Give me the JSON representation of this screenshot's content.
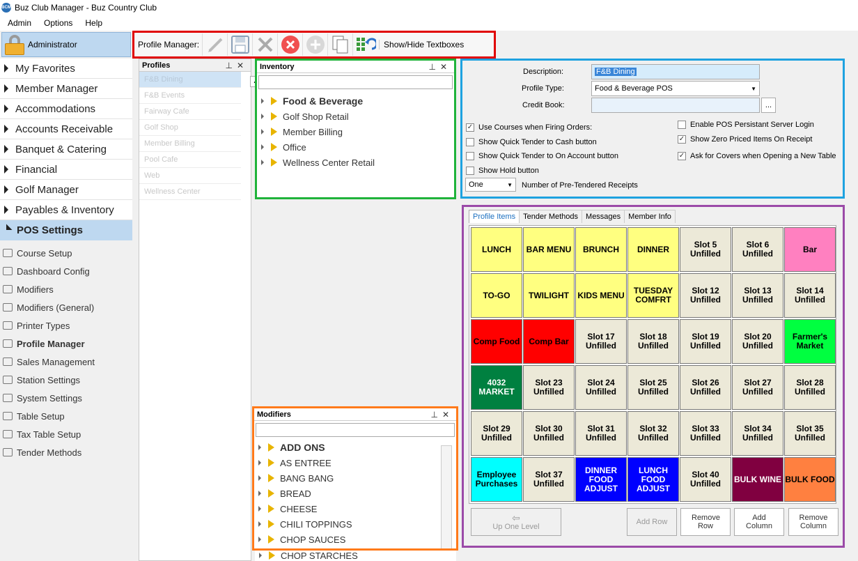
{
  "window": {
    "title": "Buz Club Manager - Buz Country Club",
    "app_badge": "BCM"
  },
  "menu": [
    "Admin",
    "Options",
    "Help"
  ],
  "user": {
    "name": "Administrator"
  },
  "nav": [
    {
      "label": "My Favorites"
    },
    {
      "label": "Member Manager"
    },
    {
      "label": "Accommodations"
    },
    {
      "label": "Accounts Receivable"
    },
    {
      "label": "Banquet & Catering"
    },
    {
      "label": "Financial"
    },
    {
      "label": "Golf Manager"
    },
    {
      "label": "Payables & Inventory"
    },
    {
      "label": "POS Settings"
    }
  ],
  "subnav": [
    {
      "label": "Course Setup",
      "icon": "course-icon"
    },
    {
      "label": "Dashboard Config",
      "icon": "dashboard-icon"
    },
    {
      "label": "Modifiers",
      "icon": "modifiers-icon"
    },
    {
      "label": "Modifiers (General)",
      "icon": "modifiers-general-icon"
    },
    {
      "label": "Printer Types",
      "icon": "printer-icon"
    },
    {
      "label": "Profile Manager",
      "icon": "grid-icon"
    },
    {
      "label": "Sales Management",
      "icon": "dollar-icon"
    },
    {
      "label": "Station Settings",
      "icon": "station-icon"
    },
    {
      "label": "System Settings",
      "icon": "gear-icon"
    },
    {
      "label": "Table Setup",
      "icon": "table-icon"
    },
    {
      "label": "Tax Table Setup",
      "icon": "percent-icon"
    },
    {
      "label": "Tender Methods",
      "icon": "tender-icon"
    }
  ],
  "toolbar": {
    "label": "Profile Manager:",
    "show_hide": "Show/Hide Textboxes"
  },
  "profiles": {
    "title": "Profiles",
    "items": [
      "F&B Dining",
      "F&B Events",
      "Fairway Cafe",
      "Golf Shop",
      "Member Billing",
      "Pool Cafe",
      "Web",
      "Wellness Center"
    ]
  },
  "inventory": {
    "title": "Inventory",
    "items": [
      "Food & Beverage",
      "Golf Shop Retail",
      "Member Billing",
      "Office",
      "Wellness Center Retail"
    ]
  },
  "modifiers": {
    "title": "Modifiers",
    "items": [
      "ADD ONS",
      "AS ENTREE",
      "BANG BANG",
      "BREAD",
      "CHEESE",
      "CHILI TOPPINGS",
      "CHOP SAUCES",
      "CHOP STARCHES"
    ]
  },
  "details": {
    "description_label": "Description:",
    "description_value": "F&B Dining",
    "profile_type_label": "Profile Type:",
    "profile_type_value": "Food & Beverage POS",
    "credit_book_label": "Credit Book:",
    "ellipsis": "...",
    "left_checks": [
      {
        "label": "Use Courses when Firing Orders:",
        "checked": true
      },
      {
        "label": "Show Quick Tender to Cash button",
        "checked": false
      },
      {
        "label": "Show Quick Tender to On Account button",
        "checked": false
      },
      {
        "label": "Show Hold button",
        "checked": false
      }
    ],
    "right_checks": [
      {
        "label": "Enable POS Persistant Server Login",
        "checked": false
      },
      {
        "label": "Show Zero Priced Items On Receipt",
        "checked": true
      },
      {
        "label": "Ask for Covers when Opening a New Table",
        "checked": true
      }
    ],
    "receipts_value": "One",
    "receipts_label": "Number of Pre-Tendered Receipts"
  },
  "grid": {
    "tabs": [
      "Profile Items",
      "Tender Methods",
      "Messages",
      "Member Info"
    ],
    "slots": [
      {
        "label": "LUNCH",
        "color": "#ffff80",
        "text": "#000000"
      },
      {
        "label": "BAR MENU",
        "color": "#ffff80",
        "text": "#000000"
      },
      {
        "label": "BRUNCH",
        "color": "#ffff80",
        "text": "#000000"
      },
      {
        "label": "DINNER",
        "color": "#ffff80",
        "text": "#000000"
      },
      {
        "label": "Slot 5 Unfilled",
        "color": "#ece9d8",
        "text": "#000000"
      },
      {
        "label": "Slot 6 Unfilled",
        "color": "#ece9d8",
        "text": "#000000"
      },
      {
        "label": "Bar",
        "color": "#ff80c0",
        "text": "#000000"
      },
      {
        "label": "TO-GO",
        "color": "#ffff80",
        "text": "#000000"
      },
      {
        "label": "TWILIGHT",
        "color": "#ffff80",
        "text": "#000000"
      },
      {
        "label": "KIDS MENU",
        "color": "#ffff80",
        "text": "#000000"
      },
      {
        "label": "TUESDAY COMFRT",
        "color": "#ffff80",
        "text": "#000000"
      },
      {
        "label": "Slot 12 Unfilled",
        "color": "#ece9d8",
        "text": "#000000"
      },
      {
        "label": "Slot 13 Unfilled",
        "color": "#ece9d8",
        "text": "#000000"
      },
      {
        "label": "Slot 14 Unfilled",
        "color": "#ece9d8",
        "text": "#000000"
      },
      {
        "label": "Comp Food",
        "color": "#ff0000",
        "text": "#000000"
      },
      {
        "label": "Comp Bar",
        "color": "#ff0000",
        "text": "#000000"
      },
      {
        "label": "Slot 17 Unfilled",
        "color": "#ece9d8",
        "text": "#000000"
      },
      {
        "label": "Slot 18 Unfilled",
        "color": "#ece9d8",
        "text": "#000000"
      },
      {
        "label": "Slot 19 Unfilled",
        "color": "#ece9d8",
        "text": "#000000"
      },
      {
        "label": "Slot 20 Unfilled",
        "color": "#ece9d8",
        "text": "#000000"
      },
      {
        "label": "Farmer's Market",
        "color": "#00ff40",
        "text": "#000000"
      },
      {
        "label": "4032 MARKET",
        "color": "#008040",
        "text": "#ffffff"
      },
      {
        "label": "Slot 23 Unfilled",
        "color": "#ece9d8",
        "text": "#000000"
      },
      {
        "label": "Slot 24 Unfilled",
        "color": "#ece9d8",
        "text": "#000000"
      },
      {
        "label": "Slot 25 Unfilled",
        "color": "#ece9d8",
        "text": "#000000"
      },
      {
        "label": "Slot 26 Unfilled",
        "color": "#ece9d8",
        "text": "#000000"
      },
      {
        "label": "Slot 27 Unfilled",
        "color": "#ece9d8",
        "text": "#000000"
      },
      {
        "label": "Slot 28 Unfilled",
        "color": "#ece9d8",
        "text": "#000000"
      },
      {
        "label": "Slot 29 Unfilled",
        "color": "#ece9d8",
        "text": "#000000"
      },
      {
        "label": "Slot 30 Unfilled",
        "color": "#ece9d8",
        "text": "#000000"
      },
      {
        "label": "Slot 31 Unfilled",
        "color": "#ece9d8",
        "text": "#000000"
      },
      {
        "label": "Slot 32 Unfilled",
        "color": "#ece9d8",
        "text": "#000000"
      },
      {
        "label": "Slot 33 Unfilled",
        "color": "#ece9d8",
        "text": "#000000"
      },
      {
        "label": "Slot 34 Unfilled",
        "color": "#ece9d8",
        "text": "#000000"
      },
      {
        "label": "Slot 35 Unfilled",
        "color": "#ece9d8",
        "text": "#000000"
      },
      {
        "label": "Employee Purchases",
        "color": "#00ffff",
        "text": "#000000"
      },
      {
        "label": "Slot 37 Unfilled",
        "color": "#ece9d8",
        "text": "#000000"
      },
      {
        "label": "DINNER FOOD ADJUST",
        "color": "#0000ff",
        "text": "#ffffff"
      },
      {
        "label": "LUNCH FOOD ADJUST",
        "color": "#0000ff",
        "text": "#ffffff"
      },
      {
        "label": "Slot 40 Unfilled",
        "color": "#ece9d8",
        "text": "#000000"
      },
      {
        "label": "BULK WINE",
        "color": "#800040",
        "text": "#ffffff"
      },
      {
        "label": "BULK FOOD",
        "color": "#ff8040",
        "text": "#000000"
      }
    ],
    "buttons": {
      "up": "Up One Level",
      "add_row": "Add Row",
      "remove_row": "Remove Row",
      "add_column": "Add Column",
      "remove_column": "Remove Column"
    }
  },
  "colors": {
    "toolbar_highlight": "#e00000",
    "inventory_highlight": "#1fb33a",
    "modifiers_highlight": "#ff7a1a",
    "details_highlight": "#1ea2e0",
    "grid_highlight": "#9b4aa8"
  }
}
